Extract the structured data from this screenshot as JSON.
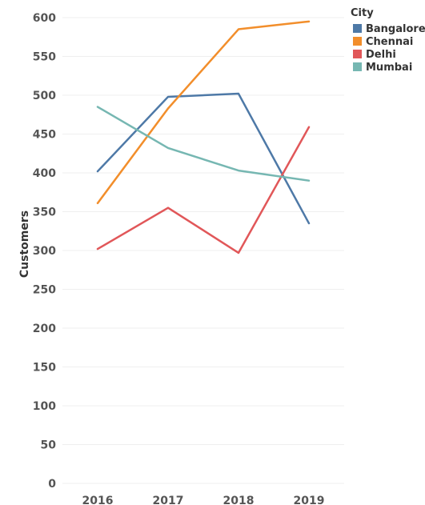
{
  "chart_data": {
    "type": "line",
    "ylabel": "Customers",
    "ylim": [
      0,
      620
    ],
    "y_ticks": [
      "0",
      "50",
      "100",
      "150",
      "200",
      "250",
      "300",
      "350",
      "400",
      "450",
      "500",
      "550",
      "600"
    ],
    "categories": [
      "2016",
      "2017",
      "2018",
      "2019"
    ],
    "grid": true,
    "legend": {
      "title": "City",
      "position": "top-right"
    },
    "series": [
      {
        "name": "Bangalore",
        "color": "#4e79a7",
        "values": [
          402,
          498,
          502,
          335
        ]
      },
      {
        "name": "Chennai",
        "color": "#f28e2b",
        "values": [
          361,
          483,
          585,
          595
        ]
      },
      {
        "name": "Delhi",
        "color": "#e15759",
        "values": [
          302,
          355,
          297,
          459
        ]
      },
      {
        "name": "Mumbai",
        "color": "#76b7b2",
        "values": [
          485,
          432,
          403,
          390
        ]
      }
    ]
  }
}
